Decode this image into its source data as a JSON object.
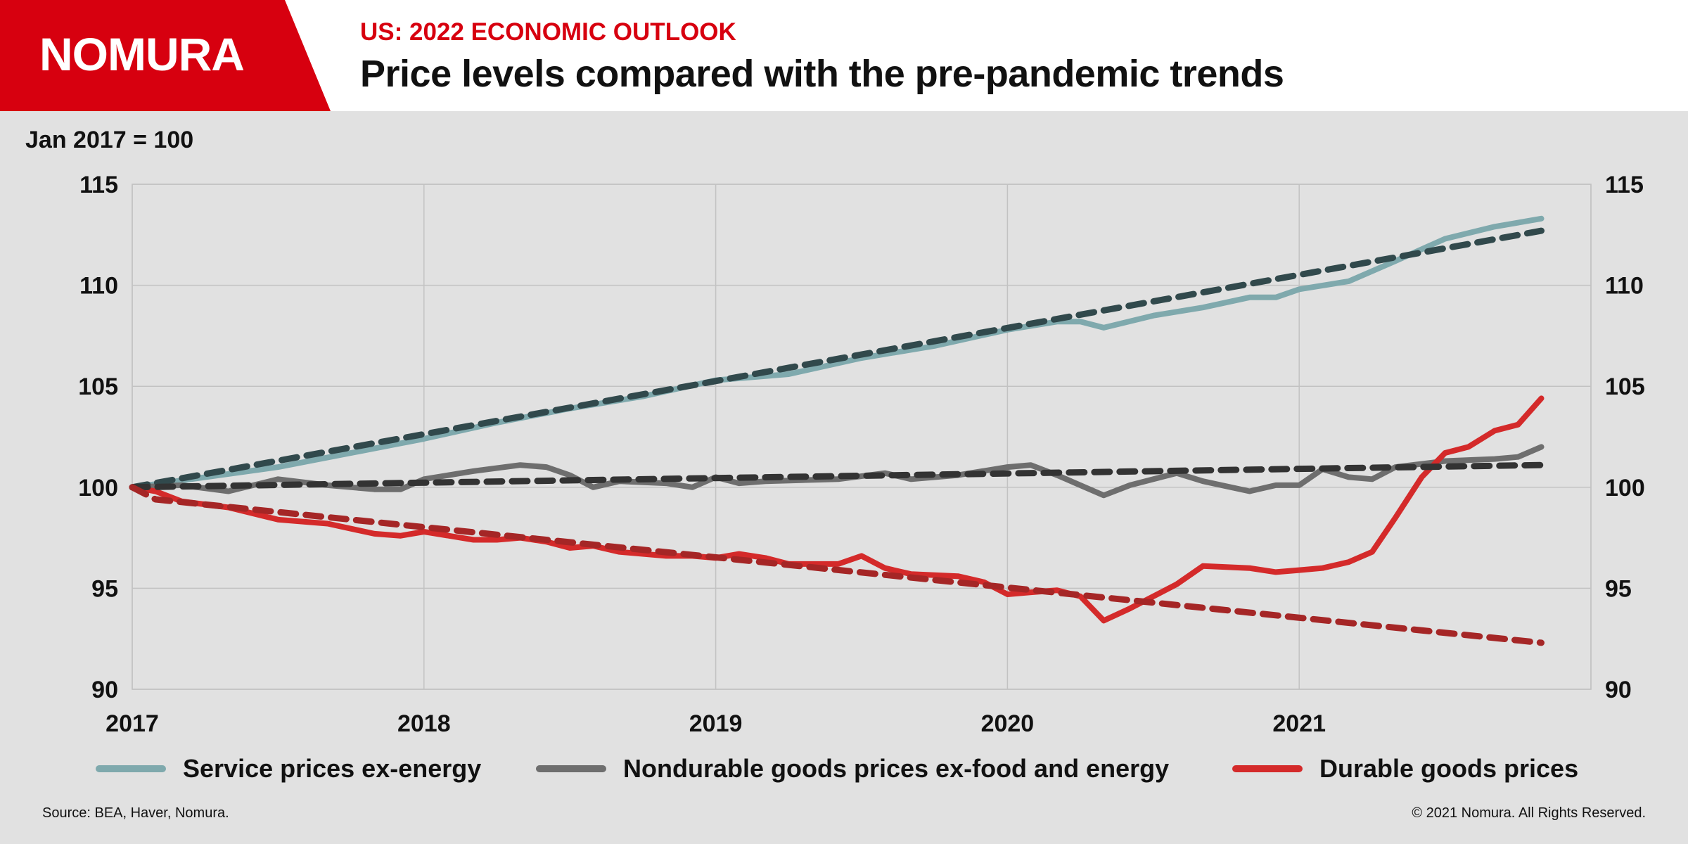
{
  "header": {
    "logo_text": "NOMURA",
    "kicker": "US: 2022 ECONOMIC OUTLOOK",
    "title": "Price levels compared with the pre-pandemic trends",
    "brand_color": "#d7000f"
  },
  "footer": {
    "source": "Source: BEA, Haver, Nomura.",
    "copyright": "© 2021 Nomura. All Rights Reserved."
  },
  "chart_data": {
    "type": "line",
    "unit_label": "Jan 2017 = 100",
    "x_tick_labels": [
      "2017",
      "2018",
      "2019",
      "2020",
      "2021"
    ],
    "x_ticks": [
      2017,
      2018,
      2019,
      2020,
      2021
    ],
    "xlim": [
      2017,
      2022
    ],
    "ylim": [
      90,
      115
    ],
    "y_ticks": [
      90,
      95,
      100,
      105,
      110,
      115
    ],
    "grid": true,
    "legend_position": "bottom",
    "series": [
      {
        "name": "Service prices ex-energy",
        "color": "#7fa9ad",
        "style": "solid",
        "x": [
          2017.0,
          2017.5,
          2018.0,
          2018.25,
          2018.5,
          2018.75,
          2019.0,
          2019.25,
          2019.5,
          2019.75,
          2020.0,
          2020.17,
          2020.25,
          2020.33,
          2020.5,
          2020.67,
          2020.83,
          2020.92,
          2021.0,
          2021.17,
          2021.33,
          2021.5,
          2021.67,
          2021.83
        ],
        "values": [
          100.0,
          101.0,
          102.4,
          103.2,
          103.9,
          104.5,
          105.3,
          105.6,
          106.4,
          107.0,
          107.8,
          108.2,
          108.2,
          107.9,
          108.5,
          108.9,
          109.4,
          109.4,
          109.8,
          110.2,
          111.2,
          112.3,
          112.9,
          113.3
        ]
      },
      {
        "name": "",
        "color": "#31494c",
        "style": "dashed",
        "x": [
          2017.0,
          2021.83
        ],
        "values": [
          100.0,
          112.7
        ]
      },
      {
        "name": "Nondurable goods prices ex-food and energy",
        "color": "#6e6e6e",
        "style": "solid",
        "x": [
          2017.0,
          2017.17,
          2017.33,
          2017.5,
          2017.67,
          2017.83,
          2017.92,
          2018.0,
          2018.17,
          2018.33,
          2018.42,
          2018.5,
          2018.58,
          2018.67,
          2018.83,
          2018.92,
          2019.0,
          2019.08,
          2019.17,
          2019.42,
          2019.58,
          2019.67,
          2019.83,
          2020.0,
          2020.08,
          2020.17,
          2020.33,
          2020.42,
          2020.58,
          2020.67,
          2020.83,
          2020.92,
          2021.0,
          2021.08,
          2021.17,
          2021.25,
          2021.33,
          2021.5,
          2021.67,
          2021.75,
          2021.83
        ],
        "values": [
          100.0,
          100.1,
          99.8,
          100.4,
          100.1,
          99.9,
          99.9,
          100.4,
          100.8,
          101.1,
          101.0,
          100.6,
          100.0,
          100.3,
          100.2,
          100.0,
          100.5,
          100.2,
          100.3,
          100.4,
          100.7,
          100.4,
          100.6,
          101.0,
          101.1,
          100.6,
          99.6,
          100.1,
          100.7,
          100.3,
          99.8,
          100.1,
          100.1,
          100.9,
          100.5,
          100.4,
          101.0,
          101.3,
          101.4,
          101.5,
          102.0
        ]
      },
      {
        "name": "",
        "color": "#333333",
        "style": "dashed",
        "x": [
          2017.0,
          2021.83
        ],
        "values": [
          100.0,
          101.1
        ]
      },
      {
        "name": "Durable goods prices",
        "color": "#d42a2a",
        "style": "solid",
        "x": [
          2017.0,
          2017.08,
          2017.17,
          2017.33,
          2017.5,
          2017.67,
          2017.83,
          2017.92,
          2018.0,
          2018.17,
          2018.25,
          2018.33,
          2018.42,
          2018.5,
          2018.58,
          2018.67,
          2018.83,
          2018.92,
          2019.0,
          2019.08,
          2019.17,
          2019.25,
          2019.33,
          2019.42,
          2019.5,
          2019.58,
          2019.67,
          2019.83,
          2019.92,
          2020.0,
          2020.08,
          2020.17,
          2020.25,
          2020.33,
          2020.42,
          2020.58,
          2020.67,
          2020.83,
          2020.92,
          2021.0,
          2021.08,
          2021.17,
          2021.25,
          2021.33,
          2021.42,
          2021.5,
          2021.58,
          2021.67,
          2021.75,
          2021.83
        ],
        "values": [
          100.0,
          99.8,
          99.3,
          99.0,
          98.4,
          98.2,
          97.7,
          97.6,
          97.8,
          97.4,
          97.4,
          97.5,
          97.3,
          97.0,
          97.1,
          96.8,
          96.6,
          96.6,
          96.5,
          96.7,
          96.5,
          96.2,
          96.2,
          96.2,
          96.6,
          96.0,
          95.7,
          95.6,
          95.3,
          94.7,
          94.8,
          94.9,
          94.6,
          93.4,
          94.0,
          95.2,
          96.1,
          96.0,
          95.8,
          95.9,
          96.0,
          96.3,
          96.8,
          98.5,
          100.5,
          101.7,
          102.0,
          102.8,
          103.1,
          104.4
        ]
      },
      {
        "name": "",
        "color": "#a52626",
        "style": "dashed",
        "x": [
          2017.0,
          2017.08,
          2021.83
        ],
        "values": [
          100.0,
          99.4,
          92.3
        ]
      }
    ]
  }
}
